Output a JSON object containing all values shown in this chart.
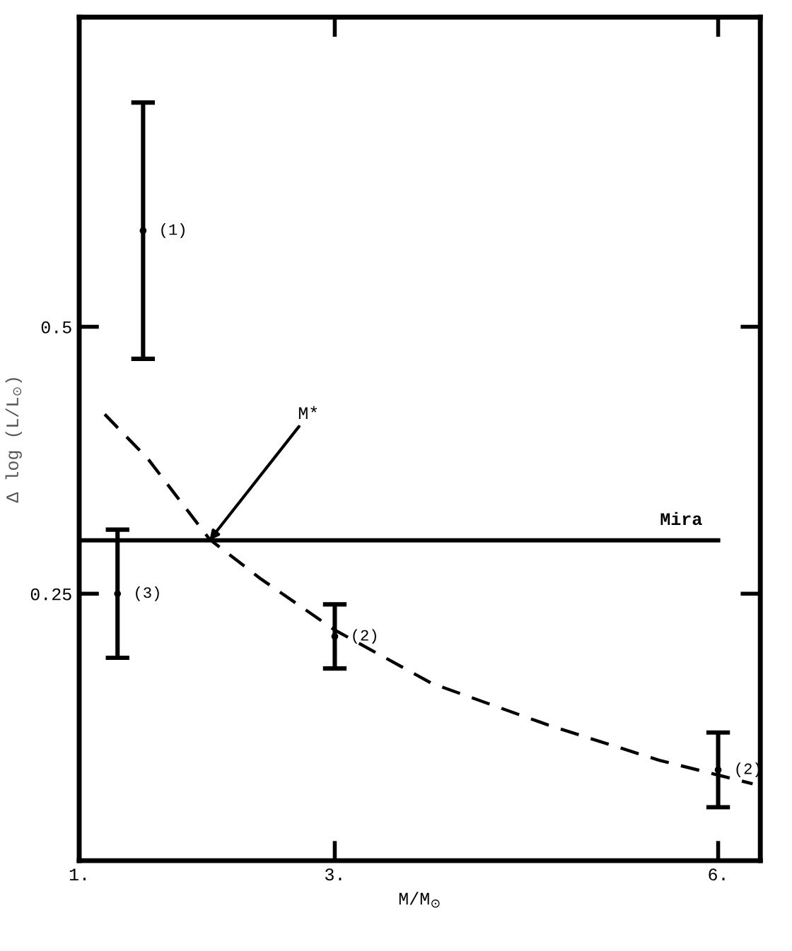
{
  "chart_data": {
    "type": "line",
    "xlabel": "M/M$_{⊙}$",
    "ylabel": "Δ log (L/L$_{⊙}$)",
    "xlim": [
      1,
      6.33
    ],
    "ylim": [
      0,
      0.79
    ],
    "xticks": [
      {
        "value": 1,
        "label": "1."
      },
      {
        "value": 3,
        "label": "3."
      },
      {
        "value": 6,
        "label": "6."
      }
    ],
    "yticks": [
      0.25,
      0.5
    ],
    "tick_labels": true,
    "grid": false,
    "legend": false,
    "series": [
      {
        "type": "scatter",
        "color": "#000000",
        "marker": "circle",
        "x": [
          1.5,
          1.3,
          3,
          6
        ],
        "values": [
          0.59,
          0.25,
          0.21,
          0.085
        ],
        "errors": [
          0.12,
          0.06,
          0.03,
          0.035
        ]
      },
      {
        "color": "#000000",
        "line_style": "dashed",
        "marker": "none",
        "x": [
          1.2,
          1.54,
          2.02,
          2.42,
          3.0,
          3.76,
          4.67,
          5.54,
          6.27
        ],
        "values": [
          0.418,
          0.376,
          0.301,
          0.264,
          0.216,
          0.166,
          0.127,
          0.094,
          0.072
        ]
      },
      {
        "name": "Mira",
        "color": "#000000",
        "line_style": "solid",
        "marker": "none",
        "x": [
          1,
          6
        ],
        "values": [
          0.3,
          0.3
        ]
      }
    ],
    "annotations": [
      "(1)",
      "(3)",
      "(2)",
      "(2)",
      {
        "text": "M*",
        "x": 2.02,
        "y": 0.3
      }
    ]
  }
}
